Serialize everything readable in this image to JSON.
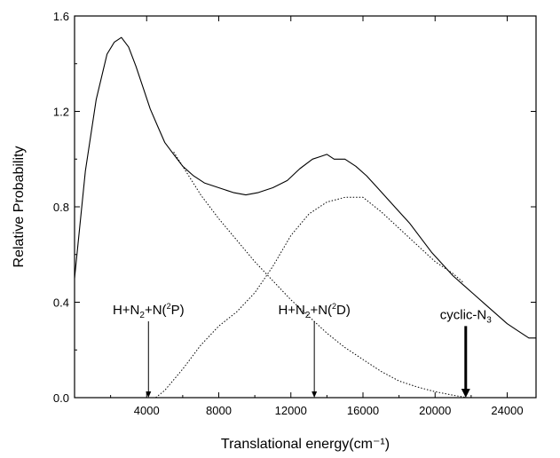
{
  "chart_data": {
    "type": "line",
    "title": "",
    "xlabel": "Translational energy(cm⁻¹)",
    "ylabel": "Relative Probability",
    "xlim": [
      0,
      25600
    ],
    "ylim": [
      0,
      1.6
    ],
    "x_ticks": [
      "4000",
      "8000",
      "12000",
      "16000",
      "20000",
      "24000"
    ],
    "y_ticks": [
      "0.0",
      "0.4",
      "0.8",
      "1.2",
      "1.6"
    ],
    "x_tick_values": [
      4000,
      8000,
      12000,
      16000,
      20000,
      24000
    ],
    "y_tick_values": [
      0,
      0.4,
      0.8,
      1.2,
      1.6
    ],
    "grid": false,
    "series": [
      {
        "style": "solid",
        "x": [
          0,
          600,
          1200,
          1800,
          2200,
          2600,
          3000,
          3400,
          3800,
          4200,
          4600,
          5000,
          5500,
          6000,
          6600,
          7200,
          8000,
          8800,
          9500,
          10200,
          11000,
          11800,
          12500,
          13200,
          13600,
          14000,
          14400,
          15000,
          15600,
          16200,
          16800,
          17400,
          18000,
          18600,
          19200,
          19800,
          20400,
          21000,
          21600,
          22200,
          22800,
          23400,
          24000,
          24600,
          25200,
          25600
        ],
        "y": [
          0.5,
          0.95,
          1.25,
          1.44,
          1.49,
          1.51,
          1.47,
          1.39,
          1.3,
          1.21,
          1.14,
          1.07,
          1.02,
          0.97,
          0.93,
          0.9,
          0.88,
          0.86,
          0.85,
          0.86,
          0.88,
          0.91,
          0.96,
          1.0,
          1.01,
          1.02,
          1.0,
          1.0,
          0.97,
          0.93,
          0.88,
          0.83,
          0.78,
          0.73,
          0.67,
          0.61,
          0.56,
          0.51,
          0.47,
          0.43,
          0.39,
          0.35,
          0.31,
          0.28,
          0.25,
          0.25
        ]
      },
      {
        "style": "dotted",
        "x": [
          5500,
          6000,
          7000,
          8000,
          9000,
          10000,
          11000,
          12000,
          13000,
          14000,
          15000,
          16000,
          17000,
          18000,
          19000,
          20000,
          21000,
          21800
        ],
        "y": [
          1.03,
          0.97,
          0.85,
          0.75,
          0.66,
          0.57,
          0.49,
          0.41,
          0.34,
          0.27,
          0.21,
          0.16,
          0.11,
          0.07,
          0.045,
          0.025,
          0.01,
          0.0
        ]
      },
      {
        "style": "dotted",
        "x": [
          4500,
          5000,
          6000,
          7000,
          8000,
          9000,
          10000,
          11000,
          12000,
          13000,
          14000,
          15000,
          16000,
          17000,
          18000,
          19000,
          20000,
          21000,
          21600
        ],
        "y": [
          0.0,
          0.03,
          0.12,
          0.22,
          0.3,
          0.36,
          0.44,
          0.55,
          0.68,
          0.77,
          0.82,
          0.84,
          0.84,
          0.78,
          0.71,
          0.64,
          0.57,
          0.52,
          0.48
        ]
      }
    ],
    "annotations": [
      {
        "x": 4100,
        "y_from": 0.32,
        "y_to": 0.0,
        "arrow": "thin",
        "base": "H+N",
        "sub": "2",
        "mid": "+N(",
        "sup": "2",
        "tail": "P)"
      },
      {
        "x": 13300,
        "y_from": 0.32,
        "y_to": 0.0,
        "arrow": "thin",
        "base": "H+N",
        "sub": "2",
        "mid": "+N(",
        "sup": "2",
        "tail": "D)"
      },
      {
        "x": 21700,
        "y_from": 0.3,
        "y_to": 0.0,
        "arrow": "thick",
        "base": "cyclic-N",
        "sub": "3",
        "mid": "",
        "sup": "",
        "tail": ""
      }
    ]
  }
}
